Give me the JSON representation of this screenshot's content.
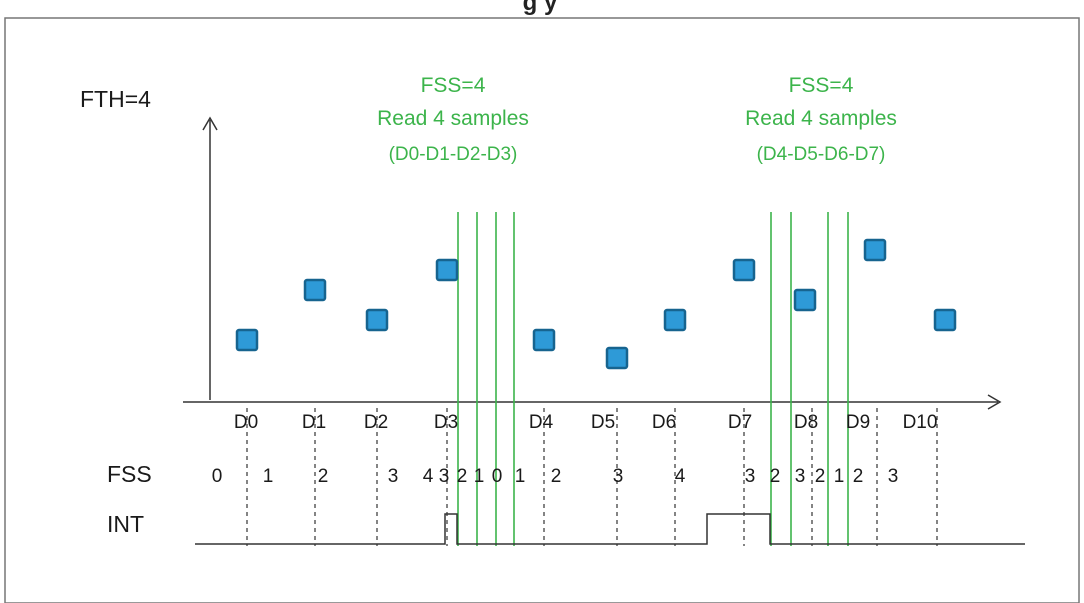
{
  "header_partial": "g        y",
  "fth_label": "FTH=4",
  "annotations": [
    {
      "line1": "FSS=4",
      "line2": "Read 4 samples",
      "line3": "(D0-D1-D2-D3)"
    },
    {
      "line1": "FSS=4",
      "line2": "Read 4 samples",
      "line3": "(D4-D5-D6-D7)"
    }
  ],
  "sample_labels": [
    "D0",
    "D1",
    "D2",
    "D3",
    "D4",
    "D5",
    "D6",
    "D7",
    "D8",
    "D9",
    "D10"
  ],
  "fss_row_label": "FSS",
  "fss_values": [
    "0",
    "1",
    "2",
    "3",
    "4",
    "3",
    "2",
    "1",
    "0",
    "1",
    "2",
    "3",
    "4",
    "3",
    "2",
    "3",
    "2",
    "1",
    "2",
    "3"
  ],
  "int_row_label": "INT",
  "colors": {
    "green": "#3cb44b",
    "marker_fill": "#2e9ad7",
    "marker_stroke": "#17648f",
    "text": "#1a1a1a",
    "axis": "#333333"
  }
}
